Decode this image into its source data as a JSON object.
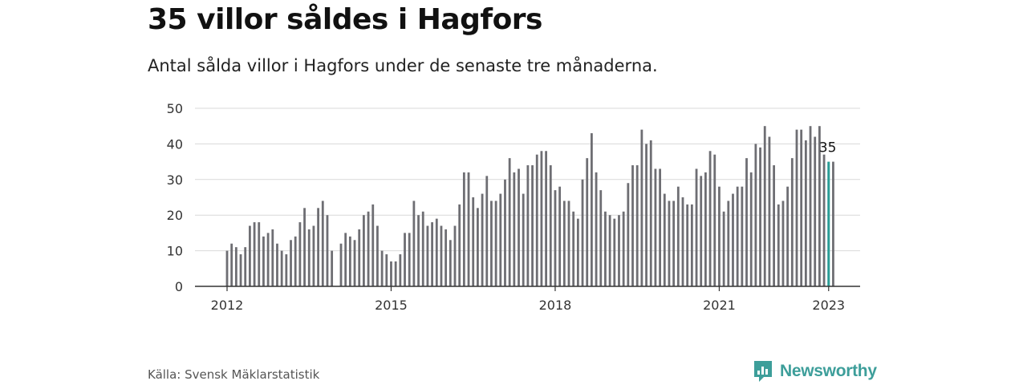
{
  "title": "35 villor såldes i Hagfors",
  "subtitle": "Antal sålda villor i Hagfors under de senaste tre månaderna.",
  "source": "Källa: Svensk Mäklarstatistik",
  "brand": {
    "name": "Newsworthy",
    "icon": "newsworthy-logo-icon",
    "color": "#3d9e9a"
  },
  "colors": {
    "bar": "#6e6e73",
    "highlight": "#2a9d96",
    "grid": "#d9d9d9",
    "axis": "#333333"
  },
  "chart_data": {
    "type": "bar",
    "start": "2012-01",
    "ylim": [
      0,
      50
    ],
    "yticks": [
      0,
      10,
      20,
      30,
      40,
      50
    ],
    "xticks": [
      {
        "label": "2012",
        "date": "2012-01"
      },
      {
        "label": "2015",
        "date": "2015-01"
      },
      {
        "label": "2018",
        "date": "2018-01"
      },
      {
        "label": "2021",
        "date": "2021-01"
      },
      {
        "label": "2023",
        "date": "2023-01"
      }
    ],
    "grid": true,
    "values": [
      10,
      12,
      11,
      9,
      11,
      17,
      18,
      18,
      14,
      15,
      16,
      12,
      10,
      9,
      13,
      14,
      18,
      22,
      16,
      17,
      22,
      24,
      20,
      10,
      null,
      12,
      15,
      14,
      13,
      16,
      20,
      21,
      23,
      17,
      10,
      9,
      7,
      7,
      9,
      15,
      15,
      24,
      20,
      21,
      17,
      18,
      19,
      17,
      16,
      13,
      17,
      23,
      32,
      32,
      25,
      22,
      26,
      31,
      24,
      24,
      26,
      30,
      36,
      32,
      33,
      26,
      34,
      34,
      37,
      38,
      38,
      34,
      27,
      28,
      24,
      24,
      21,
      19,
      30,
      36,
      43,
      32,
      27,
      21,
      20,
      19,
      20,
      21,
      29,
      34,
      34,
      44,
      40,
      41,
      33,
      33,
      26,
      24,
      24,
      28,
      25,
      23,
      23,
      33,
      31,
      32,
      38,
      37,
      28,
      21,
      24,
      26,
      28,
      28,
      36,
      32,
      40,
      39,
      45,
      42,
      34,
      23,
      24,
      28,
      36,
      44,
      44,
      41,
      45,
      42,
      45,
      37,
      35,
      35
    ],
    "highlight": {
      "label": "35",
      "value": 35,
      "date": "2023-01"
    }
  }
}
